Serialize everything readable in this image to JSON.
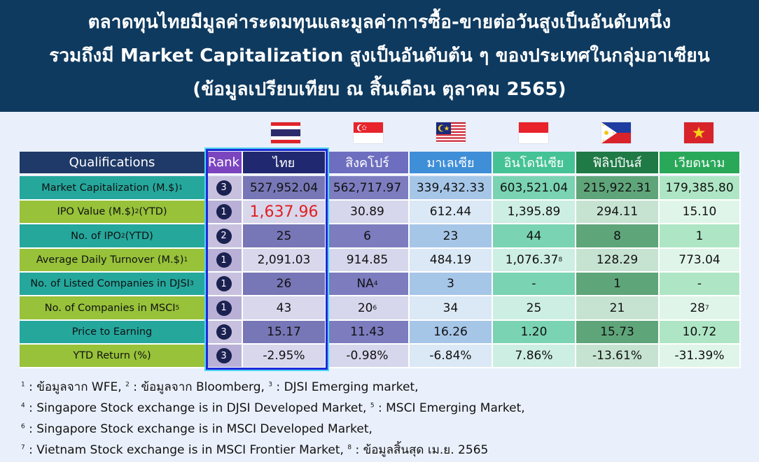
{
  "title_lines": [
    "ตลาดทุนไทยมีมูลค่าระดมทุนและมูลค่าการซื้อ-ขายต่อวันสูงเป็นอันดับหนึ่ง",
    "รวมถึงมี Market Capitalization สูงเป็นอันดับต้น ๆ ของประเทศในกลุ่มอาเซียน",
    "(ข้อมูลเปรียบเทียบ ณ สิ้นเดือน ตุลาคม 2565)"
  ],
  "flags": [
    "thailand-flag-icon",
    "singapore-flag-icon",
    "malaysia-flag-icon",
    "indonesia-flag-icon",
    "philippines-flag-icon",
    "vietnam-flag-icon"
  ],
  "header": {
    "qualifications": "Qualifications",
    "rank": "Rank",
    "countries": [
      "ไทย",
      "สิงคโปร์",
      "มาเลเซีย",
      "อินโดนีเซีย",
      "ฟิลิปปินส์",
      "เวียดนาม"
    ]
  },
  "rows": [
    {
      "label": "Market Capitalization (M.$)",
      "label_sup": "1",
      "rank": "3",
      "values": [
        "527,952.04",
        "562,717.97",
        "339,432.33",
        "603,521.04",
        "215,922.31",
        "179,385.80"
      ],
      "sups": [
        "",
        "",
        "",
        "",
        "",
        ""
      ]
    },
    {
      "label": "IPO Value (M.$)",
      "label_sup": "2",
      "label_suffix": " (YTD)",
      "rank": "1",
      "values": [
        "1,637.96",
        "30.89",
        "612.44",
        "1,395.89",
        "294.11",
        "15.10"
      ],
      "sups": [
        "",
        "",
        "",
        "",
        "",
        ""
      ]
    },
    {
      "label": "No. of IPO",
      "label_sup": "2",
      "label_suffix": " (YTD)",
      "rank": "2",
      "values": [
        "25",
        "6",
        "23",
        "44",
        "8",
        "1"
      ],
      "sups": [
        "",
        "",
        "",
        "",
        "",
        ""
      ]
    },
    {
      "label": "Average Daily Turnover (M.$)",
      "label_sup": "1",
      "rank": "1",
      "values": [
        "2,091.03",
        "914.85",
        "484.19",
        "1,076.37",
        "128.29",
        "773.04"
      ],
      "sups": [
        "",
        "",
        "",
        "8",
        "",
        ""
      ]
    },
    {
      "label": "No. of Listed Companies in DJSI",
      "label_sup": "3",
      "rank": "1",
      "values": [
        "26",
        "NA",
        "3",
        "-",
        "1",
        "-"
      ],
      "sups": [
        "",
        "4",
        "",
        "",
        "",
        ""
      ]
    },
    {
      "label": "No. of Companies in MSCI",
      "label_sup": "5",
      "rank": "1",
      "values": [
        "43",
        "20",
        "34",
        "25",
        "21",
        "28"
      ],
      "sups": [
        "",
        "6",
        "",
        "",
        "",
        "7"
      ]
    },
    {
      "label": "Price to Earning",
      "label_sup": "",
      "rank": "3",
      "values": [
        "15.17",
        "11.43",
        "16.26",
        "1.20",
        "15.73",
        "10.72"
      ],
      "sups": [
        "",
        "",
        "",
        "",
        "",
        ""
      ]
    },
    {
      "label": "YTD Return (%)",
      "label_sup": "",
      "rank": "3",
      "values": [
        "-2.95%",
        "-0.98%",
        "-6.84%",
        "7.86%",
        "-13.61%",
        "-31.39%"
      ],
      "sups": [
        "",
        "",
        "",
        "",
        "",
        ""
      ]
    }
  ],
  "highlight_value": "1,637.96",
  "colors": {
    "banner": "#0f3a5f",
    "header_qual": "#1f3a68",
    "header_rank": "#7b45c0",
    "header_th": "#20296f",
    "header_sg": "#6e6ec0",
    "header_my": "#3f8ed8",
    "header_id": "#45c296",
    "header_ph": "#1f7a46",
    "header_vn": "#2aa85a",
    "label_teal": "#25a79c",
    "label_green": "#97c23a",
    "highlight": "#e02020",
    "frame": "#1f2ad8"
  },
  "footnotes": [
    [
      {
        "sup": "1",
        "text": " : ข้อมูลจาก WFE, "
      },
      {
        "sup": "2",
        "text": " : ข้อมูลจาก Bloomberg, "
      },
      {
        "sup": "3",
        "text": " : DJSI Emerging market,"
      }
    ],
    [
      {
        "sup": "4",
        "text": " : Singapore Stock exchange is in DJSI Developed Market, "
      },
      {
        "sup": "5",
        "text": " : MSCI Emerging Market,"
      }
    ],
    [
      {
        "sup": "6",
        "text": " : Singapore Stock exchange is in MSCI Developed Market,"
      }
    ],
    [
      {
        "sup": "7",
        "text": " : Vietnam Stock exchange is in MSCI Frontier Market, "
      },
      {
        "sup": "8",
        "text": " : ข้อมูลสิ้นสุด เม.ย. 2565"
      }
    ]
  ]
}
